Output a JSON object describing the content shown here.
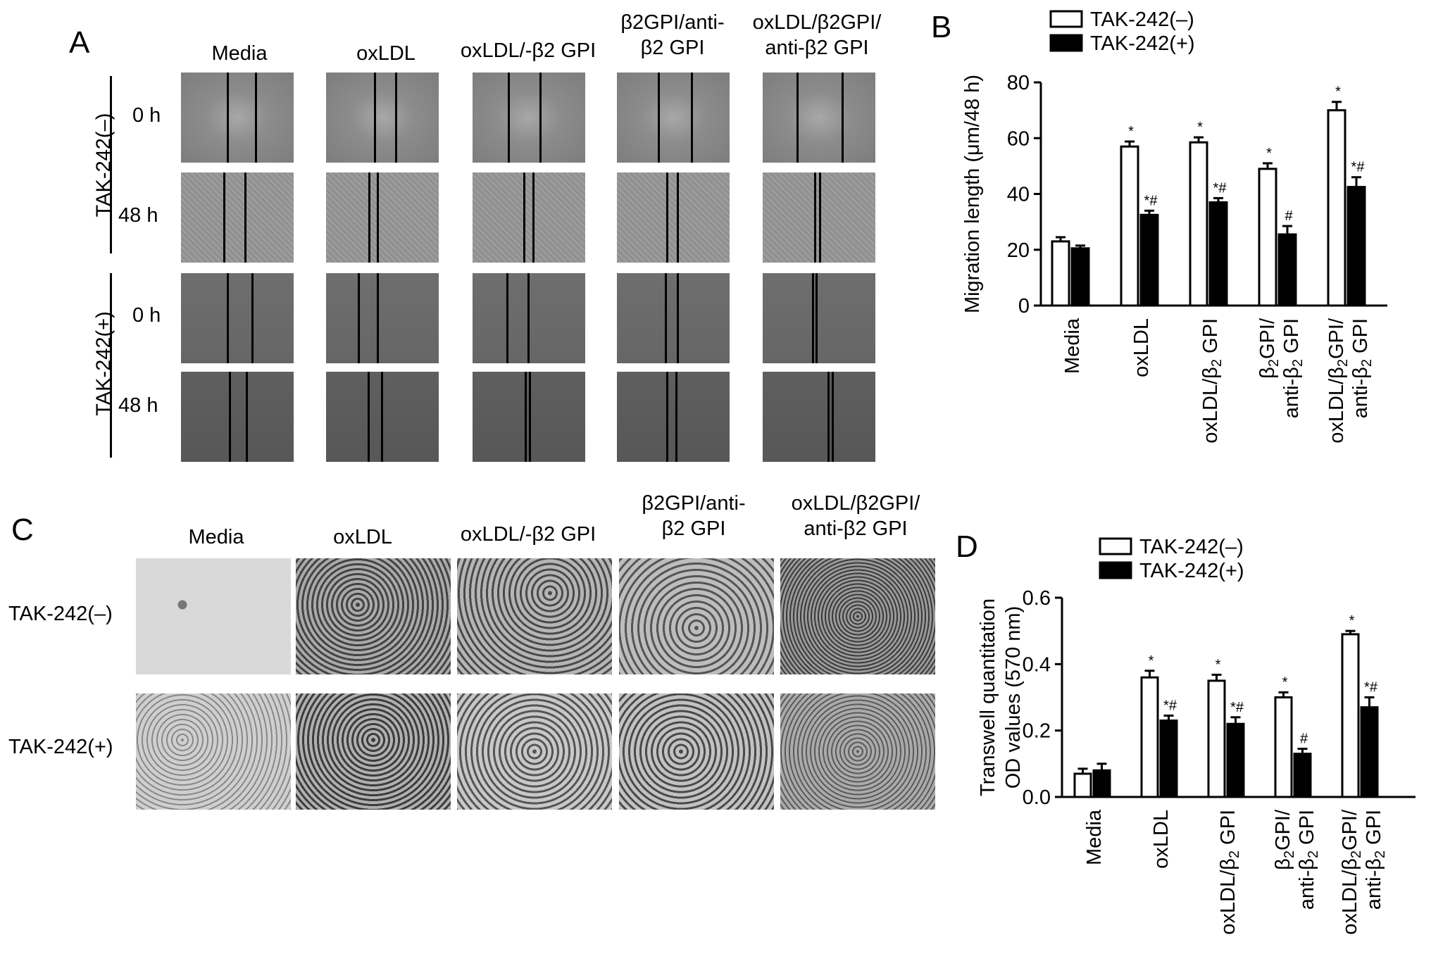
{
  "panel_A": {
    "letter": "A",
    "columns": [
      "Media",
      "oxLDL",
      "oxLDL/-β2 GPI",
      "β2GPI/anti-|β2 GPI",
      "oxLDL/β2GPI/|anti-β2 GPI"
    ],
    "groups": [
      "TAK-242(–)",
      "TAK-242(+)"
    ],
    "times": [
      "0 h",
      "48 h"
    ]
  },
  "panel_C": {
    "letter": "C",
    "columns": [
      "Media",
      "oxLDL",
      "oxLDL/-β2 GPI",
      "β2GPI/anti-|β2 GPI",
      "oxLDL/β2GPI/|anti-β2 GPI"
    ],
    "rows": [
      "TAK-242(–)",
      "TAK-242(+)"
    ]
  },
  "chart_data": [
    {
      "panel": "B",
      "type": "bar",
      "categories": [
        "Media",
        "oxLDL",
        "oxLDL/β2 GPI",
        "β2GPI/|anti-β2 GPI",
        "oxLDL/β2GPI/|anti-β2 GPI"
      ],
      "ylabel": "Migration length (μm/48 h)",
      "ylim": [
        0,
        80
      ],
      "yticks": [
        0,
        20,
        40,
        60,
        80
      ],
      "series": [
        {
          "name": "TAK-242(–)",
          "fill": "#ffffff",
          "values": [
            23,
            57,
            58.5,
            49,
            70
          ],
          "errors": [
            1.5,
            1.8,
            1.8,
            2,
            3
          ],
          "annotations": [
            "",
            "*",
            "*",
            "*",
            "*"
          ]
        },
        {
          "name": "TAK-242(+)",
          "fill": "#000000",
          "values": [
            20.5,
            32.5,
            37,
            25.5,
            42.5
          ],
          "errors": [
            1,
            1.5,
            1.5,
            3,
            3.5
          ],
          "annotations": [
            "",
            "*#",
            "*#",
            "#",
            "*#"
          ]
        }
      ],
      "legend": "top"
    },
    {
      "panel": "D",
      "type": "bar",
      "categories": [
        "Media",
        "oxLDL",
        "oxLDL/β2 GPI",
        "β2GPI/|anti-β2 GPI",
        "oxLDL/β2GPI/|anti-β2 GPI"
      ],
      "ylabel": "Transwell quantitation|OD values (570 nm)",
      "ylim": [
        0,
        0.6
      ],
      "yticks": [
        "0.0",
        "0.2",
        "0.4",
        "0.6"
      ],
      "series": [
        {
          "name": "TAK-242(–)",
          "fill": "#ffffff",
          "values": [
            0.07,
            0.36,
            0.35,
            0.3,
            0.49
          ],
          "errors": [
            0.015,
            0.02,
            0.018,
            0.015,
            0.01
          ],
          "annotations": [
            "",
            "*",
            "*",
            "*",
            "*"
          ]
        },
        {
          "name": "TAK-242(+)",
          "fill": "#000000",
          "values": [
            0.08,
            0.23,
            0.22,
            0.13,
            0.27
          ],
          "errors": [
            0.02,
            0.015,
            0.02,
            0.015,
            0.03
          ],
          "annotations": [
            "",
            "*#",
            "*#",
            "#",
            "*#"
          ]
        }
      ],
      "legend": "top"
    }
  ]
}
